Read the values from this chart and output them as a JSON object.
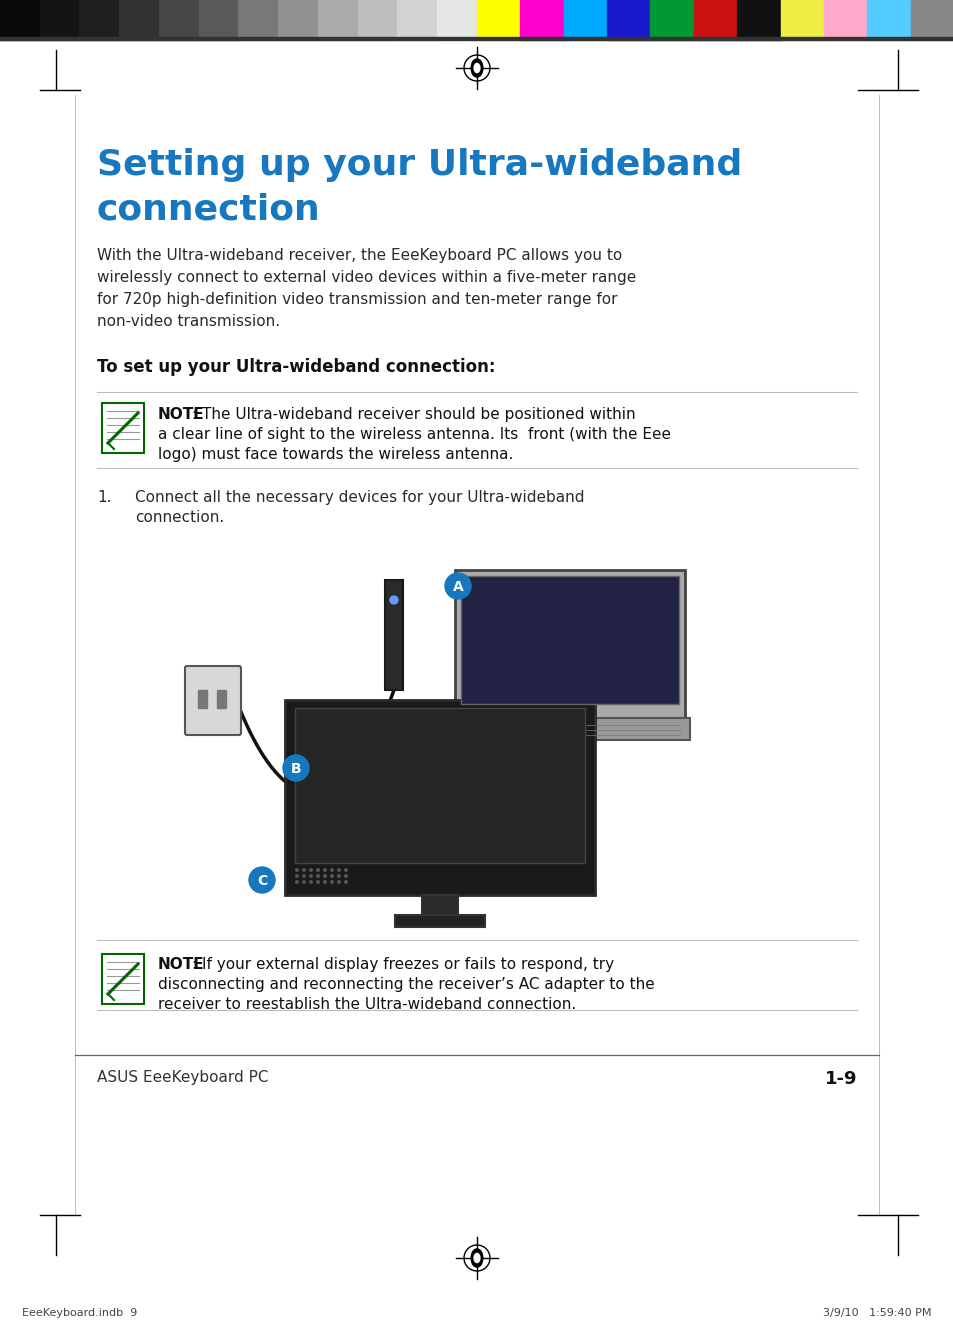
{
  "bg_color": "#ffffff",
  "title_line1": "Setting up your Ultra-wideband",
  "title_line2": "connection",
  "title_color": "#1778bf",
  "title_fontsize": 26,
  "body_text_lines": [
    "With the Ultra-wideband receiver, the EeeKeyboard PC allows you to",
    "wirelessly connect to external video devices within a five-meter range",
    "for 720p high-definition video transmission and ten-meter range for",
    "non-video transmission."
  ],
  "body_fontsize": 11,
  "body_color": "#2a2a2a",
  "subtitle": "To set up your Ultra-wideband connection:",
  "subtitle_fontsize": 12,
  "subtitle_color": "#111111",
  "note1_text_lines": [
    ": The Ultra-wideband receiver should be positioned within",
    "a clear line of sight to the wireless antenna. Its  front (with the Eee",
    "logo) must face towards the wireless antenna."
  ],
  "step1_num": "1.",
  "step1_line1": "Connect all the necessary devices for your Ultra-wideband",
  "step1_line2": "connection.",
  "note2_text_lines": [
    ": If your external display freezes or fails to respond, try",
    "disconnecting and reconnecting the receiver’s AC adapter to the",
    "receiver to reestablish the Ultra-wideband connection."
  ],
  "footer_left": "ASUS EeeKeyboard PC",
  "footer_right": "1-9",
  "bottom_left": "EeeKeyboard.indb  9",
  "bottom_right": "3/9/10   1:59:40 PM",
  "gray_bar_colors": [
    "#0a0a0a",
    "#141414",
    "#1e1e1e",
    "#323232",
    "#464646",
    "#5a5a5a",
    "#787878",
    "#919191",
    "#aaaaaa",
    "#bebebe",
    "#d2d2d2",
    "#e6e6e6"
  ],
  "color_bar_colors": [
    "#ffff00",
    "#ff00cc",
    "#00aaff",
    "#1a1acc",
    "#009933",
    "#cc1111",
    "#111111",
    "#eeee44",
    "#ffaacc",
    "#55ccff",
    "#888888"
  ],
  "note_icon_color": "#006600",
  "label_circle_color": "#1778bf"
}
